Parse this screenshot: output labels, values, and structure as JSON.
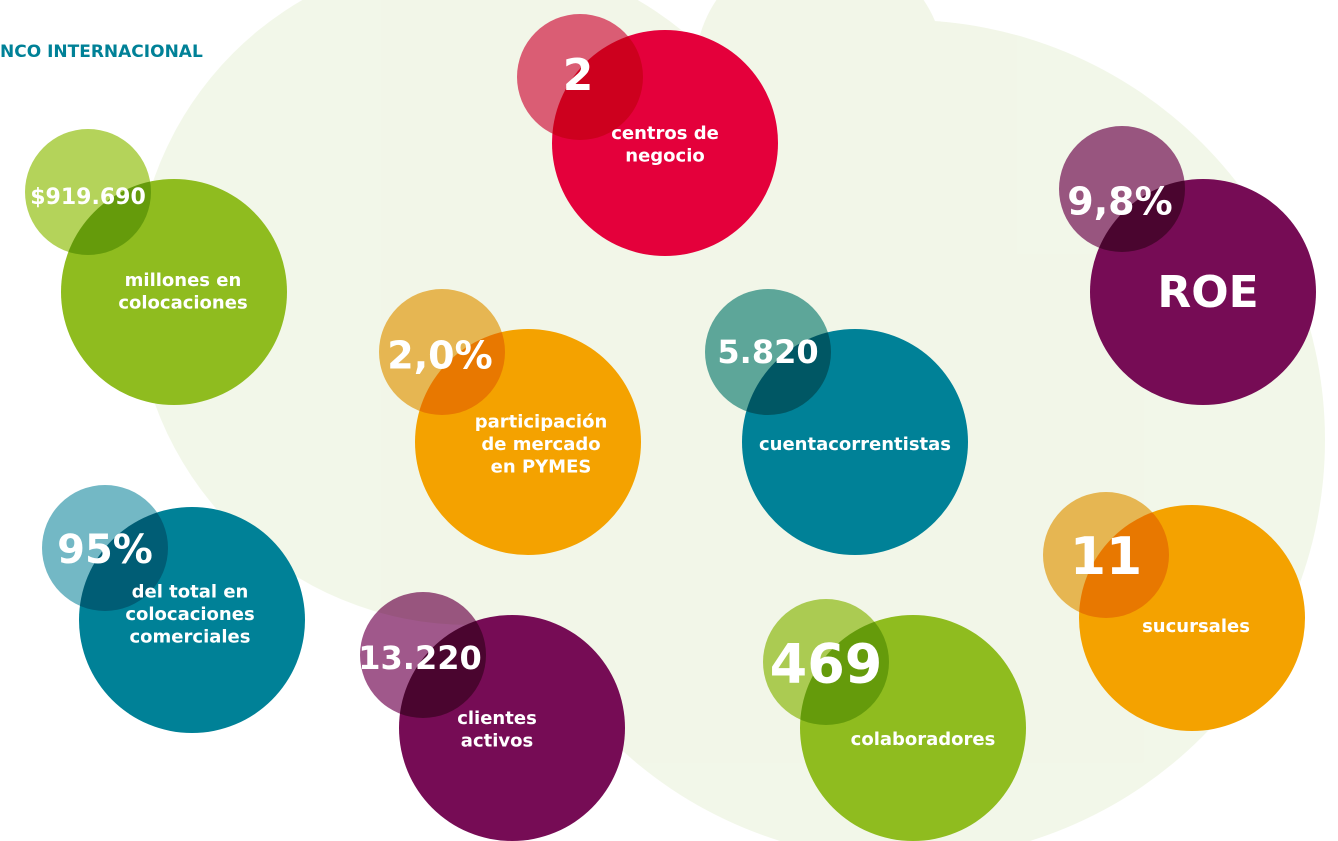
{
  "header": {
    "title": "NCO INTERNACIONAL"
  },
  "items": [
    {
      "value": "2",
      "label": [
        "centros de",
        "negocio"
      ]
    },
    {
      "value": "$919.690",
      "label": [
        "millones en",
        "colocaciones"
      ]
    },
    {
      "value": "9,8%",
      "label": [
        "ROE"
      ]
    },
    {
      "value": "2,0%",
      "label": [
        "participación",
        "de mercado",
        "en PYMES"
      ]
    },
    {
      "value": "5.820",
      "label": [
        "cuentacorrentistas"
      ]
    },
    {
      "value": "95%",
      "label": [
        "del total en",
        "colocaciones",
        "comerciales"
      ]
    },
    {
      "value": "13.220",
      "label": [
        "clientes",
        "activos"
      ]
    },
    {
      "value": "469",
      "label": [
        "colaboradores"
      ]
    },
    {
      "value": "11",
      "label": [
        "sucursales"
      ]
    }
  ]
}
